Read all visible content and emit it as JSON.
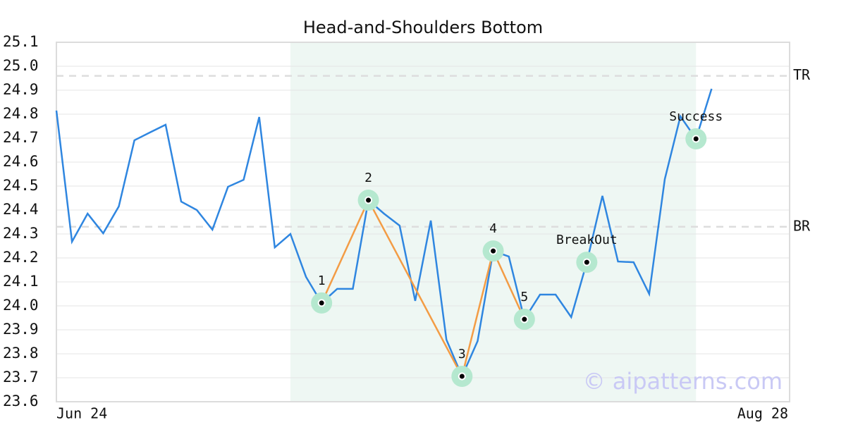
{
  "chart_data": {
    "type": "line",
    "title": "Head-and-Shoulders Bottom",
    "categories": [
      "Jun 24",
      null,
      null,
      null,
      null,
      null,
      null,
      null,
      null,
      null,
      null,
      null,
      null,
      null,
      null,
      null,
      null,
      null,
      null,
      null,
      null,
      null,
      null,
      null,
      null,
      null,
      null,
      null,
      null,
      null,
      null,
      null,
      null,
      null,
      null,
      null,
      null,
      null,
      null,
      null,
      null,
      null,
      null,
      null,
      null,
      null,
      null,
      "Aug 28"
    ],
    "series": [
      {
        "color": "#2f86e0",
        "values": [
          24.815,
          24.268,
          24.385,
          24.303,
          24.415,
          24.691,
          24.724,
          24.756,
          24.435,
          24.4,
          24.318,
          24.497,
          24.526,
          24.788,
          24.244,
          24.3,
          24.121,
          24.012,
          24.071,
          24.071,
          24.441,
          24.385,
          24.335,
          24.021,
          24.356,
          23.859,
          23.706,
          23.853,
          24.229,
          24.206,
          23.944,
          24.047,
          24.047,
          23.953,
          24.182,
          24.459,
          24.185,
          24.182,
          24.05,
          24.529,
          24.791,
          24.697,
          24.906,
          null,
          null,
          null,
          null,
          null
        ]
      }
    ],
    "ylim": [
      23.6,
      25.1
    ],
    "yticks": [
      23.6,
      23.7,
      23.8,
      23.9,
      {
        "value": 24,
        "label": "24.0"
      },
      24.1,
      24.2,
      24.3,
      24.4,
      24.5,
      24.6,
      24.7,
      24.8,
      24.9,
      {
        "value": 25,
        "label": "25.0"
      },
      25.1
    ],
    "grid": true,
    "highlight": [
      15,
      41
    ],
    "highlight_color": "#eef7f3",
    "levels": [
      {
        "label": "TR",
        "value": 24.96
      },
      {
        "label": "BR",
        "value": 24.33
      }
    ],
    "pattern": {
      "color": "#f39c45",
      "points": [
        {
          "x": 17,
          "value": 24.012,
          "label": "1"
        },
        {
          "x": 20,
          "value": 24.441,
          "label": "2"
        },
        {
          "x": 26,
          "value": 23.706,
          "label": "3"
        },
        {
          "x": 28,
          "value": 24.229,
          "label": "4"
        },
        {
          "x": 30,
          "value": 23.944,
          "label": "5"
        }
      ]
    },
    "markers": [
      {
        "x": 34,
        "value": 24.182,
        "label": "BreakOut"
      },
      {
        "x": 41,
        "value": 24.697,
        "label": "Success"
      }
    ],
    "watermark": "© aipatterns.com"
  }
}
